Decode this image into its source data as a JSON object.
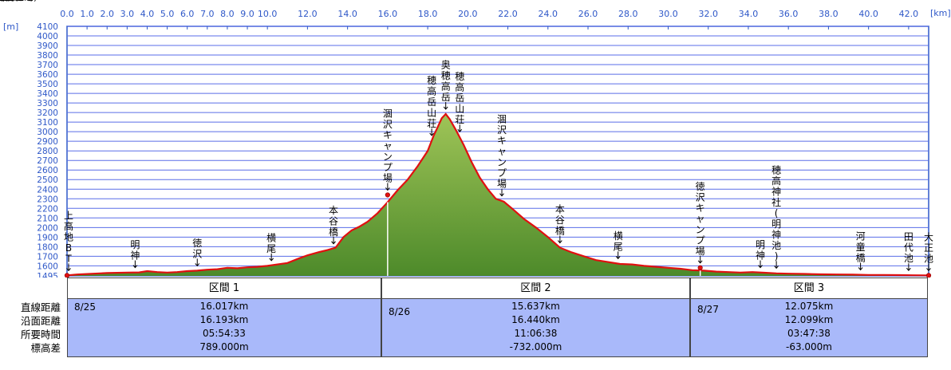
{
  "chart_data": {
    "type": "area",
    "x_unit": "[km]",
    "y_unit": "[m]",
    "x_ticks": [
      {
        "v": 0.0,
        "label": "0.0"
      },
      {
        "v": 1.0,
        "label": "1.0"
      },
      {
        "v": 2.0,
        "label": "2.0"
      },
      {
        "v": 3.0,
        "label": "3.0"
      },
      {
        "v": 4.0,
        "label": "4.0"
      },
      {
        "v": 5.0,
        "label": "5.0"
      },
      {
        "v": 6.0,
        "label": "6.0"
      },
      {
        "v": 7.0,
        "label": "7.0"
      },
      {
        "v": 8.0,
        "label": "8.0"
      },
      {
        "v": 9.0,
        "label": "9.0"
      },
      {
        "v": 10.0,
        "label": "10.0"
      },
      {
        "v": 12.0,
        "label": "12.0"
      },
      {
        "v": 14.0,
        "label": "14.0"
      },
      {
        "v": 16.0,
        "label": "16.0"
      },
      {
        "v": 18.0,
        "label": "18.0"
      },
      {
        "v": 20.0,
        "label": "20.0"
      },
      {
        "v": 22.0,
        "label": "22.0"
      },
      {
        "v": 24.0,
        "label": "24.0"
      },
      {
        "v": 26.0,
        "label": "26.0"
      },
      {
        "v": 28.0,
        "label": "28.0"
      },
      {
        "v": 30.0,
        "label": "30.0"
      },
      {
        "v": 32.0,
        "label": "32.0"
      },
      {
        "v": 34.0,
        "label": "34.0"
      },
      {
        "v": 36.0,
        "label": "36.0"
      },
      {
        "v": 38.0,
        "label": "38.0"
      },
      {
        "v": 40.0,
        "label": "40.0"
      },
      {
        "v": 42.0,
        "label": "42.0"
      }
    ],
    "y_ticks": [
      1495,
      1600,
      1700,
      1800,
      1900,
      2000,
      2100,
      2200,
      2300,
      2400,
      2500,
      2600,
      2700,
      2800,
      2900,
      3000,
      3100,
      3200,
      3300,
      3400,
      3500,
      3600,
      3700,
      3800,
      3900,
      4000,
      4100
    ],
    "ylim": [
      1495,
      4100
    ],
    "grid": true,
    "profile": [
      [
        0.0,
        1500
      ],
      [
        0.5,
        1510
      ],
      [
        1.0,
        1515
      ],
      [
        2.0,
        1525
      ],
      [
        3.0,
        1530
      ],
      [
        3.6,
        1532
      ],
      [
        4.0,
        1545
      ],
      [
        4.5,
        1535
      ],
      [
        5.0,
        1530
      ],
      [
        5.5,
        1535
      ],
      [
        6.0,
        1545
      ],
      [
        6.5,
        1550
      ],
      [
        7.0,
        1560
      ],
      [
        7.5,
        1565
      ],
      [
        8.0,
        1580
      ],
      [
        8.5,
        1575
      ],
      [
        9.0,
        1585
      ],
      [
        9.5,
        1590
      ],
      [
        10.0,
        1600
      ],
      [
        11.0,
        1630
      ],
      [
        11.6,
        1680
      ],
      [
        12.0,
        1710
      ],
      [
        12.6,
        1745
      ],
      [
        13.0,
        1765
      ],
      [
        13.4,
        1790
      ],
      [
        13.8,
        1900
      ],
      [
        14.2,
        1970
      ],
      [
        14.6,
        2010
      ],
      [
        15.0,
        2060
      ],
      [
        15.5,
        2150
      ],
      [
        16.0,
        2265
      ],
      [
        16.5,
        2390
      ],
      [
        17.0,
        2500
      ],
      [
        17.5,
        2640
      ],
      [
        18.0,
        2800
      ],
      [
        18.3,
        2960
      ],
      [
        18.5,
        3050
      ],
      [
        18.7,
        3140
      ],
      [
        18.9,
        3185
      ],
      [
        19.1,
        3130
      ],
      [
        19.4,
        3020
      ],
      [
        19.8,
        2860
      ],
      [
        20.2,
        2680
      ],
      [
        20.6,
        2520
      ],
      [
        21.0,
        2400
      ],
      [
        21.4,
        2300
      ],
      [
        21.8,
        2270
      ],
      [
        22.2,
        2200
      ],
      [
        22.8,
        2090
      ],
      [
        23.4,
        2000
      ],
      [
        24.0,
        1900
      ],
      [
        24.6,
        1790
      ],
      [
        25.2,
        1740
      ],
      [
        25.8,
        1700
      ],
      [
        26.4,
        1660
      ],
      [
        27.0,
        1640
      ],
      [
        27.6,
        1620
      ],
      [
        28.2,
        1615
      ],
      [
        28.8,
        1600
      ],
      [
        29.4,
        1590
      ],
      [
        30.0,
        1580
      ],
      [
        30.6,
        1570
      ],
      [
        31.2,
        1555
      ],
      [
        31.8,
        1550
      ],
      [
        32.4,
        1540
      ],
      [
        33.0,
        1535
      ],
      [
        33.6,
        1530
      ],
      [
        34.2,
        1535
      ],
      [
        34.8,
        1528
      ],
      [
        35.4,
        1522
      ],
      [
        36.0,
        1518
      ],
      [
        36.8,
        1516
      ],
      [
        37.6,
        1512
      ],
      [
        38.4,
        1510
      ],
      [
        39.2,
        1508
      ],
      [
        40.0,
        1505
      ],
      [
        40.8,
        1505
      ],
      [
        41.6,
        1503
      ],
      [
        42.2,
        1502
      ],
      [
        42.8,
        1501
      ],
      [
        43.0,
        1500
      ]
    ],
    "waypoints": [
      {
        "x": 0.0,
        "y": 1500,
        "label": "上高地BT",
        "marker": true,
        "anchor": "left"
      },
      {
        "x": 3.4,
        "y": 1532,
        "label": "明神"
      },
      {
        "x": 6.5,
        "y": 1550,
        "label": "徳沢"
      },
      {
        "x": 10.2,
        "y": 1605,
        "label": "横尾"
      },
      {
        "x": 13.3,
        "y": 1780,
        "label": "本谷橋"
      },
      {
        "x": 16.0,
        "y": 2340,
        "label": "涸沢キャンプ場",
        "marker": true
      },
      {
        "x": 18.2,
        "y": 2910,
        "label": "穂高岳山荘"
      },
      {
        "x": 18.9,
        "y": 3185,
        "label": "奥穂高岳"
      },
      {
        "x": 19.6,
        "y": 2950,
        "label": "穂高岳山荘"
      },
      {
        "x": 21.7,
        "y": 2280,
        "label": "涸沢キャンプ場"
      },
      {
        "x": 24.6,
        "y": 1790,
        "label": "本谷橋"
      },
      {
        "x": 27.5,
        "y": 1625,
        "label": "横尾"
      },
      {
        "x": 31.6,
        "y": 1580,
        "label": "徳沢キャンプ場",
        "marker": true
      },
      {
        "x": 34.6,
        "y": 1532,
        "label": "明神"
      },
      {
        "x": 35.4,
        "y": 1525,
        "label": "穂高神社(明神池)"
      },
      {
        "x": 39.6,
        "y": 1508,
        "label": "河童橋"
      },
      {
        "x": 42.0,
        "y": 1502,
        "label": "田代池"
      },
      {
        "x": 43.0,
        "y": 1500,
        "label": "大正池",
        "marker": true
      }
    ],
    "segment_boundaries": [
      16.0,
      31.6
    ]
  },
  "summary": {
    "row_labels": [
      "直線距離",
      "沿面距離",
      "所要時間",
      "標高差"
    ],
    "segments": [
      {
        "title": "区間 1",
        "date": "8/25",
        "straight": "16.017km",
        "surface": "16.193km",
        "time": "05:54:33",
        "elev": "789.000m"
      },
      {
        "title": "区間 2",
        "date": "8/26",
        "straight": "15.637km",
        "surface": "16.440km",
        "time": "11:06:38",
        "elev": "-732.000m"
      },
      {
        "title": "区間 3",
        "date": "8/27",
        "straight": "12.075km",
        "surface": "12.099km",
        "time": "03:47:38",
        "elev": "-63.000m"
      }
    ]
  },
  "colors": {
    "axis_text": "#2f58c8",
    "grid": "#5a6ee8",
    "fill_top": "#9fc457",
    "fill_bottom": "#4d8a2a",
    "profile_line": "#e01010",
    "table_bg": "#a9b9fa"
  }
}
